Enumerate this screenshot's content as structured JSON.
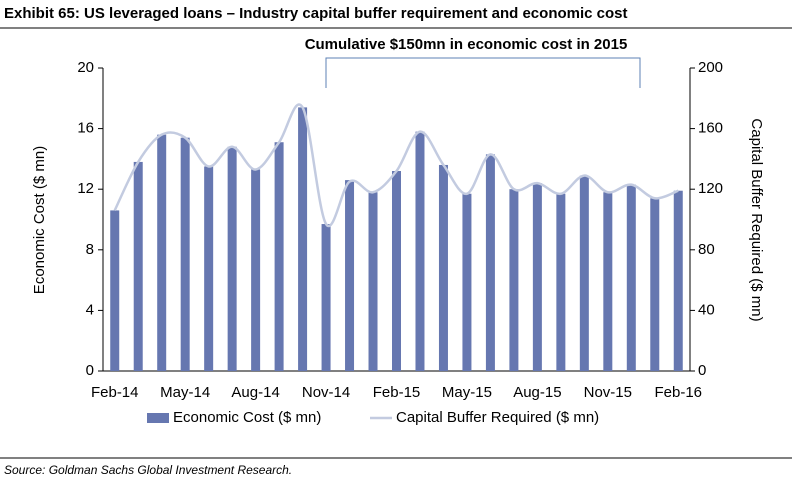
{
  "chart_data": {
    "type": "bar",
    "title": "Exhibit 65: US leveraged loans – Industry capital buffer requirement and economic cost",
    "annotation": "Cumulative $150mn in economic cost in 2015",
    "ylabel": "Economic Cost ($ mn)",
    "y2label": "Capital Buffer Required ($ mn)",
    "source": "Source: Goldman Sachs Global Investment Research.",
    "categories": [
      "Feb-14",
      null,
      null,
      "May-14",
      null,
      null,
      "Aug-14",
      null,
      null,
      "Nov-14",
      null,
      null,
      "Feb-15",
      null,
      null,
      "May-15",
      null,
      null,
      "Aug-15",
      null,
      null,
      "Nov-15",
      null,
      null,
      "Feb-16"
    ],
    "series": [
      {
        "name": "Economic Cost ($ mn)",
        "type": "bar",
        "color": "#6677b0",
        "values": [
          10.6,
          13.8,
          15.6,
          15.4,
          13.5,
          14.8,
          13.3,
          15.1,
          17.4,
          9.7,
          12.6,
          11.8,
          13.2,
          15.8,
          13.6,
          11.7,
          14.3,
          12.0,
          12.4,
          11.7,
          12.9,
          11.8,
          12.3,
          11.4,
          11.9
        ]
      },
      {
        "name": "Capital Buffer Required ($ mn)",
        "type": "line",
        "axis": "y2",
        "color": "#c3cbe0",
        "values": [
          106,
          138,
          156,
          154,
          135,
          148,
          133,
          151,
          174,
          97,
          125,
          118,
          132,
          158,
          136,
          117,
          143,
          120,
          124,
          117,
          129,
          118,
          123,
          114,
          119
        ]
      }
    ],
    "ylim": [
      0,
      20
    ],
    "yticks": [
      0,
      4,
      8,
      12,
      16,
      20
    ],
    "y2lim": [
      0,
      200
    ],
    "y2ticks": [
      0,
      40,
      80,
      120,
      160,
      200
    ],
    "grid": false
  }
}
